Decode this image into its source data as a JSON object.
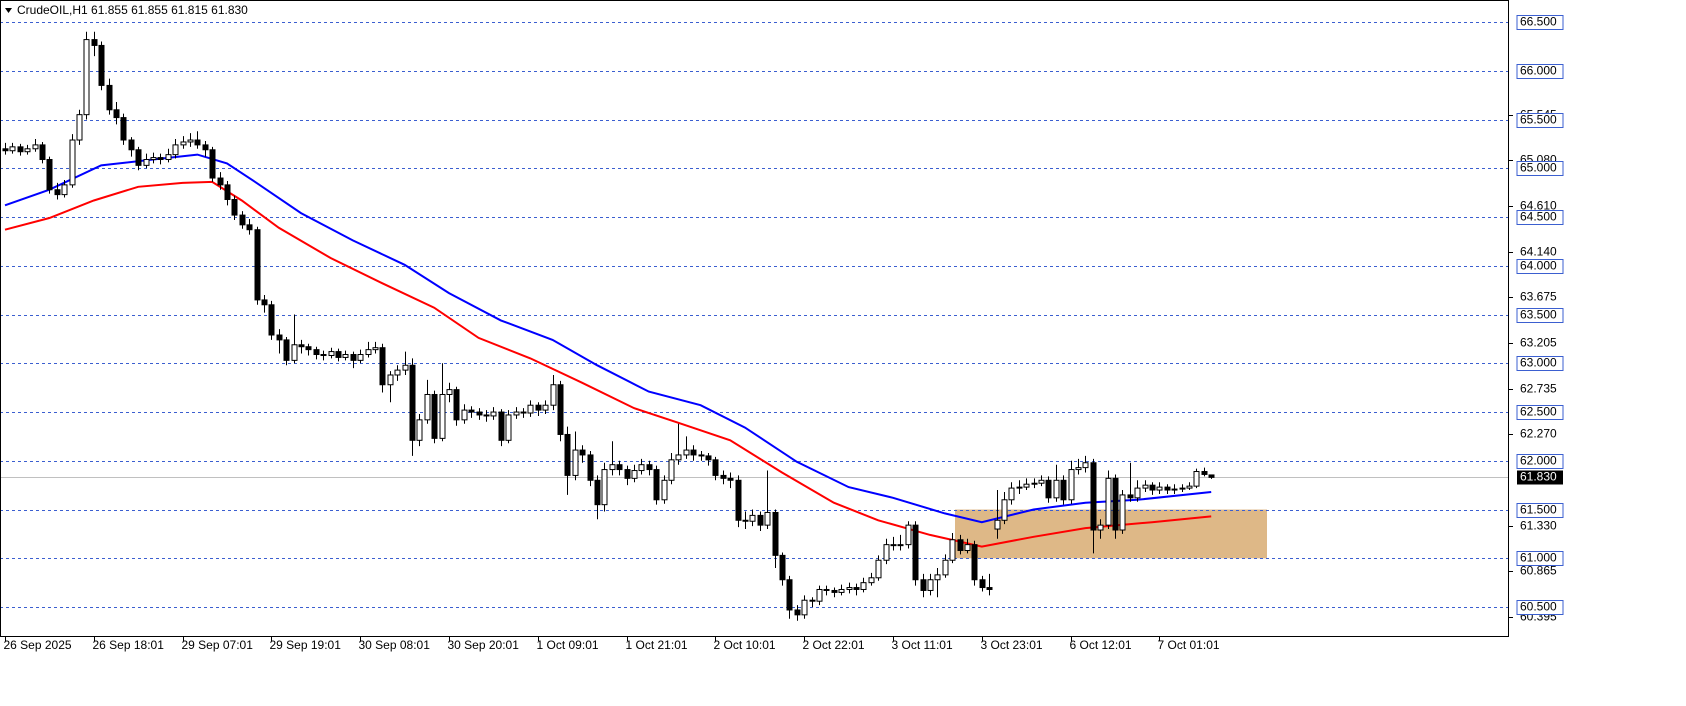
{
  "chart_data": {
    "type": "candlestick",
    "title": "CrudeOIL,H1  61.855 61.855 61.815 61.830",
    "ylim": [
      60.203,
      66.726
    ],
    "yticks": [
      {
        "value": 65.545,
        "label": "65.545"
      },
      {
        "value": 65.08,
        "label": "65.080"
      },
      {
        "value": 64.61,
        "label": "64.610"
      },
      {
        "value": 64.14,
        "label": "64.140"
      },
      {
        "value": 63.675,
        "label": "63.675"
      },
      {
        "value": 63.205,
        "label": "63.205"
      },
      {
        "value": 62.735,
        "label": "62.735"
      },
      {
        "value": 62.27,
        "label": "62.270"
      },
      {
        "value": 61.33,
        "label": "61.330"
      },
      {
        "value": 60.865,
        "label": "60.865"
      },
      {
        "value": 60.395,
        "label": "60.395"
      }
    ],
    "levels": [
      {
        "value": 66.5,
        "label": "66.500"
      },
      {
        "value": 66,
        "label": "66.000"
      },
      {
        "value": 65.5,
        "label": "65.500"
      },
      {
        "value": 65,
        "label": "65.000"
      },
      {
        "value": 64.5,
        "label": "64.500"
      },
      {
        "value": 64,
        "label": "64.000"
      },
      {
        "value": 63.5,
        "label": "63.500"
      },
      {
        "value": 63,
        "label": "63.000"
      },
      {
        "value": 62.5,
        "label": "62.500"
      },
      {
        "value": 62,
        "label": "62.000"
      },
      {
        "value": 61.5,
        "label": "61.500"
      },
      {
        "value": 61,
        "label": "61.000"
      },
      {
        "value": 60.5,
        "label": "60.500"
      }
    ],
    "level_color": "#3b5fd0",
    "last_price": {
      "value": 61.83,
      "label": "61.830"
    },
    "zone": {
      "low": 61.0,
      "high": 61.5,
      "color": "#deb887"
    },
    "xticks": [
      {
        "value": 0,
        "label": "26 Sep 2025"
      },
      {
        "value": 12,
        "label": "26 Sep 18:01"
      },
      {
        "value": 24,
        "label": "29 Sep 07:01"
      },
      {
        "value": 36,
        "label": "29 Sep 19:01"
      },
      {
        "value": 48,
        "label": "30 Sep 08:01"
      },
      {
        "value": 60,
        "label": "30 Sep 20:01"
      },
      {
        "value": 72,
        "label": "1 Oct 09:01"
      },
      {
        "value": 84,
        "label": "1 Oct 21:01"
      },
      {
        "value": 96,
        "label": "2 Oct 10:01"
      },
      {
        "value": 108,
        "label": "2 Oct 22:01"
      },
      {
        "value": 120,
        "label": "3 Oct 11:01"
      },
      {
        "value": 132,
        "label": "3 Oct 23:01"
      },
      {
        "value": 144,
        "label": "6 Oct 12:01"
      },
      {
        "value": 156,
        "label": "7 Oct 01:01"
      }
    ],
    "up_color": "#ffffff",
    "down_color": "#000000",
    "candles": [
      [
        65.2,
        65.26,
        65.14,
        65.18
      ],
      [
        65.18,
        65.26,
        65.15,
        65.22
      ],
      [
        65.22,
        65.25,
        65.13,
        65.17
      ],
      [
        65.17,
        65.24,
        65.14,
        65.2
      ],
      [
        65.2,
        65.3,
        65.17,
        65.24
      ],
      [
        65.24,
        65.27,
        65.05,
        65.09
      ],
      [
        65.09,
        65.12,
        64.74,
        64.78
      ],
      [
        64.78,
        64.85,
        64.68,
        64.73
      ],
      [
        64.73,
        64.88,
        64.7,
        64.83
      ],
      [
        64.83,
        65.35,
        64.8,
        65.29
      ],
      [
        65.29,
        65.6,
        65.24,
        65.55
      ],
      [
        65.55,
        66.4,
        65.5,
        66.32
      ],
      [
        66.32,
        66.4,
        66.15,
        66.26
      ],
      [
        66.26,
        66.3,
        65.8,
        65.85
      ],
      [
        65.85,
        65.92,
        65.55,
        65.6
      ],
      [
        65.6,
        65.68,
        65.45,
        65.52
      ],
      [
        65.52,
        65.56,
        65.24,
        65.29
      ],
      [
        65.29,
        65.32,
        65.12,
        65.19
      ],
      [
        65.19,
        65.22,
        64.98,
        65.03
      ],
      [
        65.03,
        65.15,
        65.0,
        65.09
      ],
      [
        65.09,
        65.16,
        65.05,
        65.11
      ],
      [
        65.11,
        65.15,
        65.04,
        65.09
      ],
      [
        65.09,
        65.2,
        65.06,
        65.14
      ],
      [
        65.14,
        65.3,
        65.1,
        65.24
      ],
      [
        65.24,
        65.33,
        65.2,
        65.27
      ],
      [
        65.27,
        65.36,
        65.22,
        65.29
      ],
      [
        65.29,
        65.38,
        65.2,
        65.24
      ],
      [
        65.24,
        65.28,
        65.12,
        65.19
      ],
      [
        65.19,
        65.22,
        64.86,
        64.9
      ],
      [
        64.9,
        64.96,
        64.78,
        64.83
      ],
      [
        64.83,
        64.87,
        64.62,
        64.68
      ],
      [
        64.68,
        64.72,
        64.47,
        64.52
      ],
      [
        64.52,
        64.56,
        64.38,
        64.42
      ],
      [
        64.42,
        64.48,
        64.32,
        64.37
      ],
      [
        64.37,
        64.4,
        63.6,
        63.65
      ],
      [
        63.65,
        63.7,
        63.52,
        63.6
      ],
      [
        63.6,
        63.64,
        63.24,
        63.29
      ],
      [
        63.29,
        63.35,
        63.1,
        63.24
      ],
      [
        63.24,
        63.27,
        62.98,
        63.03
      ],
      [
        63.03,
        63.5,
        63.0,
        63.19
      ],
      [
        63.19,
        63.24,
        63.1,
        63.17
      ],
      [
        63.17,
        63.2,
        63.08,
        63.14
      ],
      [
        63.14,
        63.17,
        63.04,
        63.09
      ],
      [
        63.09,
        63.13,
        63.03,
        63.08
      ],
      [
        63.08,
        63.16,
        63.05,
        63.12
      ],
      [
        63.12,
        63.15,
        63.02,
        63.06
      ],
      [
        63.06,
        63.13,
        63.03,
        63.09
      ],
      [
        63.09,
        63.12,
        62.95,
        63.03
      ],
      [
        63.03,
        63.14,
        63.0,
        63.09
      ],
      [
        63.09,
        63.22,
        63.06,
        63.14
      ],
      [
        63.14,
        63.22,
        63.1,
        63.16
      ],
      [
        63.16,
        63.2,
        62.7,
        62.78
      ],
      [
        62.78,
        62.92,
        62.6,
        62.88
      ],
      [
        62.88,
        62.98,
        62.82,
        62.93
      ],
      [
        62.93,
        63.12,
        62.88,
        62.98
      ],
      [
        62.98,
        63.05,
        62.05,
        62.21
      ],
      [
        62.21,
        62.48,
        62.15,
        62.42
      ],
      [
        62.42,
        62.83,
        62.38,
        62.68
      ],
      [
        62.68,
        62.72,
        62.18,
        62.23
      ],
      [
        62.23,
        63.0,
        62.2,
        62.68
      ],
      [
        62.68,
        62.8,
        62.6,
        62.73
      ],
      [
        62.73,
        62.76,
        62.36,
        62.42
      ],
      [
        62.42,
        62.58,
        62.38,
        62.52
      ],
      [
        62.52,
        62.56,
        62.44,
        62.5
      ],
      [
        62.5,
        62.54,
        62.42,
        62.47
      ],
      [
        62.47,
        62.52,
        62.4,
        62.46
      ],
      [
        62.46,
        62.55,
        62.42,
        62.5
      ],
      [
        62.5,
        62.53,
        62.15,
        62.21
      ],
      [
        62.21,
        62.52,
        62.18,
        62.47
      ],
      [
        62.47,
        62.55,
        62.43,
        62.5
      ],
      [
        62.5,
        62.54,
        62.44,
        62.49
      ],
      [
        62.49,
        62.62,
        62.45,
        62.57
      ],
      [
        62.57,
        62.6,
        62.46,
        62.52
      ],
      [
        62.52,
        62.62,
        62.48,
        62.57
      ],
      [
        62.57,
        62.88,
        62.52,
        62.78
      ],
      [
        62.78,
        62.82,
        62.2,
        62.27
      ],
      [
        62.27,
        62.35,
        61.65,
        61.85
      ],
      [
        61.85,
        62.3,
        61.8,
        62.11
      ],
      [
        62.11,
        62.16,
        61.98,
        62.06
      ],
      [
        62.06,
        62.1,
        61.74,
        61.8
      ],
      [
        61.8,
        61.85,
        61.4,
        61.55
      ],
      [
        61.55,
        61.98,
        61.48,
        61.91
      ],
      [
        61.91,
        62.2,
        61.85,
        61.96
      ],
      [
        61.96,
        62.0,
        61.85,
        61.91
      ],
      [
        61.91,
        61.95,
        61.75,
        61.82
      ],
      [
        61.82,
        61.96,
        61.78,
        61.9
      ],
      [
        61.9,
        62.02,
        61.86,
        61.96
      ],
      [
        61.96,
        62.0,
        61.85,
        61.91
      ],
      [
        61.91,
        61.95,
        61.55,
        61.6
      ],
      [
        61.6,
        61.85,
        61.56,
        61.8
      ],
      [
        61.8,
        62.08,
        61.76,
        62.01
      ],
      [
        62.01,
        62.38,
        61.96,
        62.06
      ],
      [
        62.06,
        62.25,
        62.02,
        62.11
      ],
      [
        62.11,
        62.16,
        62.0,
        62.06
      ],
      [
        62.06,
        62.1,
        62.0,
        62.05
      ],
      [
        62.05,
        62.08,
        61.95,
        62.01
      ],
      [
        62.01,
        62.04,
        61.8,
        61.85
      ],
      [
        61.85,
        61.9,
        61.76,
        61.82
      ],
      [
        61.82,
        61.88,
        61.72,
        61.8
      ],
      [
        61.8,
        61.85,
        61.32,
        61.39
      ],
      [
        61.39,
        61.48,
        61.3,
        61.38
      ],
      [
        61.38,
        61.5,
        61.33,
        61.44
      ],
      [
        61.44,
        61.48,
        61.28,
        61.34
      ],
      [
        61.34,
        61.9,
        61.3,
        61.47
      ],
      [
        61.47,
        61.5,
        60.9,
        61.03
      ],
      [
        61.03,
        61.06,
        60.72,
        60.78
      ],
      [
        60.78,
        60.82,
        60.38,
        60.47
      ],
      [
        60.47,
        60.52,
        60.36,
        60.42
      ],
      [
        60.42,
        60.62,
        60.38,
        60.57
      ],
      [
        60.57,
        60.6,
        60.5,
        60.56
      ],
      [
        60.56,
        60.72,
        60.52,
        60.68
      ],
      [
        60.68,
        60.72,
        60.62,
        60.67
      ],
      [
        60.67,
        60.7,
        60.6,
        60.65
      ],
      [
        60.65,
        60.73,
        60.62,
        60.68
      ],
      [
        60.68,
        60.75,
        60.64,
        60.7
      ],
      [
        60.7,
        60.74,
        60.62,
        60.68
      ],
      [
        60.68,
        60.8,
        60.65,
        60.75
      ],
      [
        60.75,
        60.85,
        60.72,
        60.8
      ],
      [
        60.8,
        61.03,
        60.77,
        60.98
      ],
      [
        60.98,
        61.2,
        60.94,
        61.14
      ],
      [
        61.14,
        61.22,
        61.08,
        61.13
      ],
      [
        61.13,
        61.24,
        61.08,
        61.14
      ],
      [
        61.14,
        61.38,
        61.1,
        61.34
      ],
      [
        61.34,
        61.38,
        60.72,
        60.78
      ],
      [
        60.78,
        60.84,
        60.6,
        60.67
      ],
      [
        60.67,
        60.84,
        60.62,
        60.78
      ],
      [
        60.78,
        60.9,
        60.6,
        60.83
      ],
      [
        60.83,
        61.04,
        60.8,
        60.98
      ],
      [
        60.98,
        61.26,
        60.95,
        61.19
      ],
      [
        61.19,
        61.24,
        61.04,
        61.08
      ],
      [
        61.08,
        61.2,
        61.05,
        61.14
      ],
      [
        61.14,
        61.18,
        60.72,
        60.78
      ],
      [
        60.78,
        60.82,
        60.66,
        60.7
      ],
      [
        60.7,
        60.84,
        60.62,
        60.68
      ],
      [
        61.3,
        61.7,
        61.2,
        61.39
      ],
      [
        61.39,
        61.68,
        61.35,
        61.6
      ],
      [
        61.6,
        61.78,
        61.55,
        61.72
      ],
      [
        61.72,
        61.8,
        61.66,
        61.73
      ],
      [
        61.73,
        61.82,
        61.7,
        61.76
      ],
      [
        61.76,
        61.82,
        61.72,
        61.77
      ],
      [
        61.77,
        61.85,
        61.74,
        61.8
      ],
      [
        61.8,
        61.84,
        61.57,
        61.62
      ],
      [
        61.62,
        61.96,
        61.58,
        61.8
      ],
      [
        61.8,
        61.85,
        61.55,
        61.6
      ],
      [
        61.6,
        62.0,
        61.56,
        61.91
      ],
      [
        61.91,
        62.02,
        61.86,
        61.93
      ],
      [
        61.93,
        62.05,
        61.88,
        61.98
      ],
      [
        61.98,
        62.02,
        61.05,
        61.29
      ],
      [
        61.29,
        61.4,
        61.2,
        61.34
      ],
      [
        61.34,
        61.9,
        61.3,
        61.82
      ],
      [
        61.82,
        61.86,
        61.2,
        61.29
      ],
      [
        61.29,
        61.7,
        61.25,
        61.65
      ],
      [
        61.65,
        61.98,
        61.58,
        61.62
      ],
      [
        61.62,
        61.8,
        61.58,
        61.72
      ],
      [
        61.72,
        61.8,
        61.68,
        61.75
      ],
      [
        61.75,
        61.78,
        61.65,
        61.7
      ],
      [
        61.7,
        61.78,
        61.66,
        61.73
      ],
      [
        61.73,
        61.76,
        61.66,
        61.7
      ],
      [
        61.7,
        61.76,
        61.66,
        61.71
      ],
      [
        61.71,
        61.76,
        61.68,
        61.72
      ],
      [
        61.72,
        61.78,
        61.7,
        61.74
      ],
      [
        61.74,
        61.92,
        61.72,
        61.89
      ],
      [
        61.89,
        61.93,
        61.84,
        61.86
      ],
      [
        61.855,
        61.855,
        61.815,
        61.83
      ]
    ],
    "lines": [
      {
        "color": "#0000ff",
        "x": [
          0,
          6,
          13,
          20,
          26,
          30,
          34,
          40,
          47,
          54,
          60,
          67,
          74,
          80,
          87,
          94,
          100,
          107,
          114,
          120,
          127,
          132,
          139,
          146,
          153,
          163
        ],
        "values": [
          64.62,
          64.78,
          65.03,
          65.09,
          65.14,
          65.05,
          64.85,
          64.54,
          64.26,
          64.01,
          63.72,
          63.44,
          63.24,
          62.98,
          62.71,
          62.57,
          62.34,
          61.99,
          61.73,
          61.62,
          61.46,
          61.37,
          61.5,
          61.57,
          61.6,
          61.68
        ]
      },
      {
        "color": "#ff0000",
        "x": [
          0,
          6,
          12,
          18,
          24,
          28,
          32,
          37,
          44,
          51,
          58,
          64,
          71,
          78,
          85,
          91,
          98,
          105,
          112,
          118,
          125,
          132,
          139,
          146,
          155,
          163
        ],
        "values": [
          64.37,
          64.49,
          64.67,
          64.81,
          64.85,
          64.86,
          64.67,
          64.39,
          64.08,
          63.82,
          63.57,
          63.26,
          63.05,
          62.8,
          62.54,
          62.39,
          62.21,
          61.88,
          61.57,
          61.39,
          61.24,
          61.12,
          61.22,
          61.31,
          61.37,
          61.43
        ]
      }
    ]
  }
}
